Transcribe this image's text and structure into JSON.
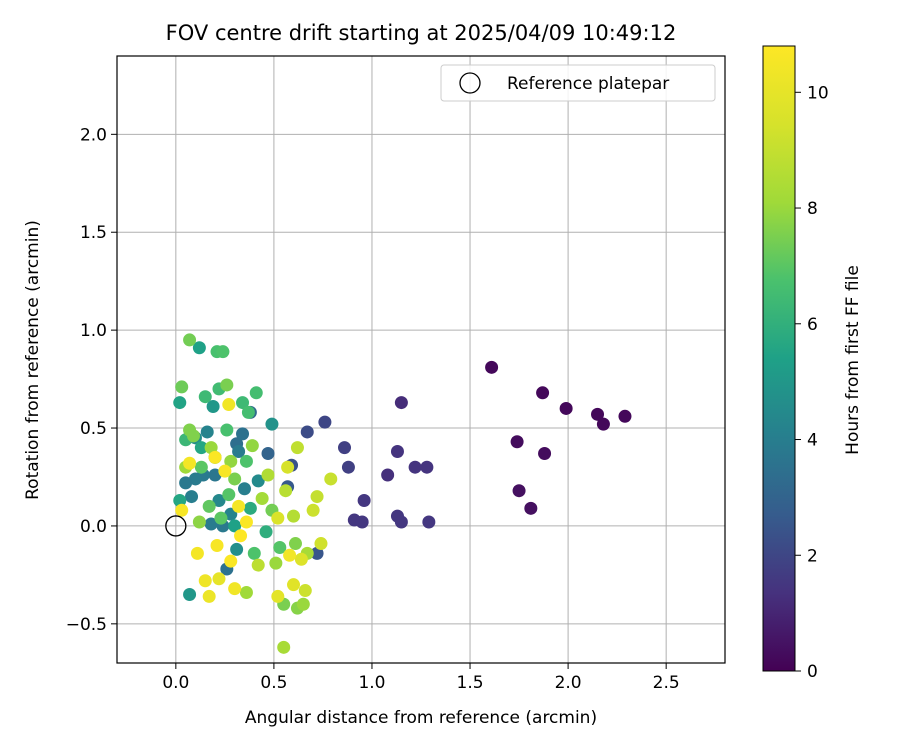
{
  "chart_data": {
    "type": "scatter",
    "title": "FOV centre drift starting at 2025/04/09 10:49:12",
    "xlabel": "Angular distance from reference (arcmin)",
    "ylabel": "Rotation from reference (arcmin)",
    "xlim": [
      -0.3,
      2.8
    ],
    "ylim": [
      -0.7,
      2.4
    ],
    "xticks": [
      0.0,
      0.5,
      1.0,
      1.5,
      2.0,
      2.5
    ],
    "xtick_labels": [
      "0.0",
      "0.5",
      "1.0",
      "1.5",
      "2.0",
      "2.5"
    ],
    "yticks": [
      -0.5,
      0.0,
      0.5,
      1.0,
      1.5,
      2.0
    ],
    "ytick_labels": [
      "−0.5",
      "0.0",
      "0.5",
      "1.0",
      "1.5",
      "2.0"
    ],
    "grid": true,
    "legend_position": "top-right",
    "legend": [
      {
        "label": "Reference platepar",
        "marker": "open-circle"
      }
    ],
    "reference_point": {
      "x": 0.0,
      "y": 0.0
    },
    "colorbar": {
      "label": "Hours from first FF file",
      "colormap": "viridis",
      "range": [
        0,
        10.8
      ],
      "ticks": [
        0,
        2,
        4,
        6,
        8,
        10
      ],
      "tick_labels": [
        "0",
        "2",
        "4",
        "6",
        "8",
        "10"
      ]
    },
    "points": [
      {
        "x": 1.61,
        "y": 0.81,
        "h": 0.2
      },
      {
        "x": 1.87,
        "y": 0.68,
        "h": 0.2
      },
      {
        "x": 1.99,
        "y": 0.6,
        "h": 0.2
      },
      {
        "x": 2.15,
        "y": 0.57,
        "h": 0.2
      },
      {
        "x": 2.18,
        "y": 0.52,
        "h": 0.2
      },
      {
        "x": 2.29,
        "y": 0.56,
        "h": 0.2
      },
      {
        "x": 1.74,
        "y": 0.43,
        "h": 0.3
      },
      {
        "x": 1.88,
        "y": 0.37,
        "h": 0.3
      },
      {
        "x": 1.75,
        "y": 0.18,
        "h": 0.4
      },
      {
        "x": 1.81,
        "y": 0.09,
        "h": 0.4
      },
      {
        "x": 1.15,
        "y": 0.63,
        "h": 1.2
      },
      {
        "x": 1.13,
        "y": 0.38,
        "h": 1.4
      },
      {
        "x": 1.22,
        "y": 0.3,
        "h": 1.4
      },
      {
        "x": 1.28,
        "y": 0.3,
        "h": 1.4
      },
      {
        "x": 1.08,
        "y": 0.26,
        "h": 1.3
      },
      {
        "x": 0.96,
        "y": 0.13,
        "h": 1.5
      },
      {
        "x": 0.91,
        "y": 0.03,
        "h": 1.5
      },
      {
        "x": 0.95,
        "y": 0.02,
        "h": 1.5
      },
      {
        "x": 1.13,
        "y": 0.05,
        "h": 1.5
      },
      {
        "x": 1.15,
        "y": 0.02,
        "h": 1.5
      },
      {
        "x": 1.29,
        "y": 0.02,
        "h": 1.5
      },
      {
        "x": 0.86,
        "y": 0.4,
        "h": 1.8
      },
      {
        "x": 0.88,
        "y": 0.3,
        "h": 1.8
      },
      {
        "x": 0.76,
        "y": 0.53,
        "h": 2.0
      },
      {
        "x": 0.67,
        "y": 0.48,
        "h": 2.2
      },
      {
        "x": 0.59,
        "y": 0.31,
        "h": 2.4
      },
      {
        "x": 0.72,
        "y": -0.14,
        "h": 2.5
      },
      {
        "x": 0.57,
        "y": 0.2,
        "h": 2.6
      },
      {
        "x": 0.47,
        "y": 0.37,
        "h": 3.0
      },
      {
        "x": 0.38,
        "y": 0.58,
        "h": 3.2
      },
      {
        "x": 0.31,
        "y": 0.42,
        "h": 3.4
      },
      {
        "x": 0.34,
        "y": 0.47,
        "h": 3.5
      },
      {
        "x": 0.2,
        "y": 0.26,
        "h": 3.7
      },
      {
        "x": 0.14,
        "y": 0.26,
        "h": 3.8
      },
      {
        "x": 0.1,
        "y": 0.24,
        "h": 3.9
      },
      {
        "x": 0.05,
        "y": 0.22,
        "h": 3.8
      },
      {
        "x": 0.08,
        "y": 0.15,
        "h": 4.0
      },
      {
        "x": 0.24,
        "y": 0.0,
        "h": 3.8
      },
      {
        "x": 0.18,
        "y": 0.01,
        "h": 3.9
      },
      {
        "x": 0.26,
        "y": -0.22,
        "h": 3.5
      },
      {
        "x": 0.32,
        "y": 0.38,
        "h": 3.9
      },
      {
        "x": 0.16,
        "y": 0.48,
        "h": 4.2
      },
      {
        "x": 0.1,
        "y": 0.45,
        "h": 4.6
      },
      {
        "x": 0.49,
        "y": 0.52,
        "h": 4.8
      },
      {
        "x": 0.19,
        "y": 0.61,
        "h": 5.0
      },
      {
        "x": 0.07,
        "y": -0.35,
        "h": 5.0
      },
      {
        "x": 0.31,
        "y": -0.12,
        "h": 4.7
      },
      {
        "x": 0.22,
        "y": 0.13,
        "h": 4.4
      },
      {
        "x": 0.28,
        "y": 0.06,
        "h": 4.2
      },
      {
        "x": 0.35,
        "y": 0.19,
        "h": 4.0
      },
      {
        "x": 0.42,
        "y": 0.23,
        "h": 4.5
      },
      {
        "x": 0.12,
        "y": 0.91,
        "h": 5.4
      },
      {
        "x": 0.02,
        "y": 0.63,
        "h": 5.5
      },
      {
        "x": 0.13,
        "y": 0.4,
        "h": 5.6
      },
      {
        "x": 0.2,
        "y": 0.35,
        "h": 5.8
      },
      {
        "x": 0.3,
        "y": 0.0,
        "h": 5.4
      },
      {
        "x": 0.02,
        "y": 0.13,
        "h": 5.6
      },
      {
        "x": 0.38,
        "y": 0.09,
        "h": 5.8
      },
      {
        "x": 0.46,
        "y": -0.03,
        "h": 5.9
      },
      {
        "x": 0.05,
        "y": 0.44,
        "h": 6.3
      },
      {
        "x": 0.15,
        "y": 0.66,
        "h": 6.4
      },
      {
        "x": 0.22,
        "y": 0.7,
        "h": 6.5
      },
      {
        "x": 0.34,
        "y": 0.63,
        "h": 6.4
      },
      {
        "x": 0.41,
        "y": 0.68,
        "h": 6.6
      },
      {
        "x": 0.21,
        "y": 0.89,
        "h": 6.7
      },
      {
        "x": 0.24,
        "y": 0.89,
        "h": 6.8
      },
      {
        "x": 0.37,
        "y": 0.58,
        "h": 6.6
      },
      {
        "x": 0.26,
        "y": 0.49,
        "h": 6.7
      },
      {
        "x": 0.36,
        "y": 0.33,
        "h": 6.8
      },
      {
        "x": 0.13,
        "y": 0.3,
        "h": 7.0
      },
      {
        "x": 0.27,
        "y": 0.16,
        "h": 6.9
      },
      {
        "x": 0.17,
        "y": 0.1,
        "h": 7.1
      },
      {
        "x": 0.23,
        "y": 0.04,
        "h": 7.0
      },
      {
        "x": 0.4,
        "y": -0.14,
        "h": 6.8
      },
      {
        "x": 0.53,
        "y": -0.11,
        "h": 6.9
      },
      {
        "x": 0.07,
        "y": 0.95,
        "h": 7.4
      },
      {
        "x": 0.03,
        "y": 0.71,
        "h": 7.3
      },
      {
        "x": 0.26,
        "y": 0.72,
        "h": 7.5
      },
      {
        "x": 0.07,
        "y": 0.49,
        "h": 7.6
      },
      {
        "x": 0.09,
        "y": 0.46,
        "h": 7.6
      },
      {
        "x": 0.3,
        "y": 0.24,
        "h": 7.5
      },
      {
        "x": 0.49,
        "y": 0.08,
        "h": 7.4
      },
      {
        "x": 0.61,
        "y": -0.09,
        "h": 7.6
      },
      {
        "x": 0.55,
        "y": -0.4,
        "h": 7.5
      },
      {
        "x": 0.62,
        "y": -0.42,
        "h": 7.7
      },
      {
        "x": 0.12,
        "y": 0.02,
        "h": 7.8
      },
      {
        "x": 0.39,
        "y": 0.41,
        "h": 7.9
      },
      {
        "x": 0.18,
        "y": 0.4,
        "h": 8.0
      },
      {
        "x": 0.28,
        "y": 0.33,
        "h": 7.9
      },
      {
        "x": 0.05,
        "y": 0.3,
        "h": 8.1
      },
      {
        "x": 0.44,
        "y": 0.14,
        "h": 8.2
      },
      {
        "x": 0.51,
        "y": -0.19,
        "h": 8.0
      },
      {
        "x": 0.67,
        "y": -0.14,
        "h": 8.3
      },
      {
        "x": 0.36,
        "y": -0.34,
        "h": 8.1
      },
      {
        "x": 0.65,
        "y": -0.4,
        "h": 8.0
      },
      {
        "x": 0.55,
        "y": -0.62,
        "h": 8.3
      },
      {
        "x": 0.47,
        "y": 0.26,
        "h": 8.5
      },
      {
        "x": 0.56,
        "y": 0.18,
        "h": 8.7
      },
      {
        "x": 0.6,
        "y": 0.05,
        "h": 8.6
      },
      {
        "x": 0.42,
        "y": -0.2,
        "h": 8.8
      },
      {
        "x": 0.62,
        "y": 0.4,
        "h": 8.9
      },
      {
        "x": 0.72,
        "y": 0.15,
        "h": 9.0
      },
      {
        "x": 0.79,
        "y": 0.24,
        "h": 9.1
      },
      {
        "x": 0.7,
        "y": 0.08,
        "h": 9.2
      },
      {
        "x": 0.74,
        "y": -0.09,
        "h": 9.3
      },
      {
        "x": 0.66,
        "y": -0.33,
        "h": 9.2
      },
      {
        "x": 0.57,
        "y": 0.3,
        "h": 9.5
      },
      {
        "x": 0.52,
        "y": 0.04,
        "h": 9.6
      },
      {
        "x": 0.64,
        "y": -0.17,
        "h": 9.7
      },
      {
        "x": 0.6,
        "y": -0.3,
        "h": 9.8
      },
      {
        "x": 0.52,
        "y": -0.36,
        "h": 9.9
      },
      {
        "x": 0.22,
        "y": -0.27,
        "h": 10.0
      },
      {
        "x": 0.17,
        "y": -0.36,
        "h": 10.2
      },
      {
        "x": 0.15,
        "y": -0.28,
        "h": 10.3
      },
      {
        "x": 0.3,
        "y": -0.32,
        "h": 10.4
      },
      {
        "x": 0.11,
        "y": -0.14,
        "h": 10.5
      },
      {
        "x": 0.21,
        "y": -0.1,
        "h": 10.6
      },
      {
        "x": 0.28,
        "y": -0.18,
        "h": 10.7
      },
      {
        "x": 0.03,
        "y": 0.08,
        "h": 10.6
      },
      {
        "x": 0.07,
        "y": 0.32,
        "h": 10.5
      },
      {
        "x": 0.27,
        "y": 0.62,
        "h": 10.4
      },
      {
        "x": 0.2,
        "y": 0.35,
        "h": 10.7
      },
      {
        "x": 0.25,
        "y": 0.28,
        "h": 10.6
      },
      {
        "x": 0.32,
        "y": 0.1,
        "h": 10.5
      },
      {
        "x": 0.36,
        "y": 0.02,
        "h": 10.7
      },
      {
        "x": 0.33,
        "y": -0.05,
        "h": 10.8
      },
      {
        "x": 0.58,
        "y": -0.15,
        "h": 10.4
      }
    ]
  }
}
